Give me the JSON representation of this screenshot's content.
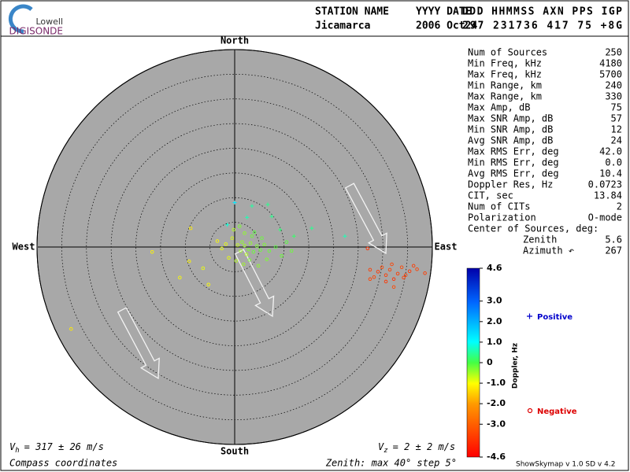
{
  "header": {
    "logo_top": "Lowell",
    "logo_bottom": "DIGISONDE",
    "columns": [
      "STATION NAME",
      "YYYY DATE",
      "DDD HHMMSS AXN PPS IGP"
    ],
    "values": [
      "Jicamarca",
      "2006 Oct24",
      "297 231736 417  75 +8G"
    ]
  },
  "stats": [
    {
      "label": "Num of Sources",
      "value": "250"
    },
    {
      "label": "Min Freq, kHz",
      "value": "4180"
    },
    {
      "label": "Max Freq, kHz",
      "value": "5700"
    },
    {
      "label": "Min Range, km",
      "value": "240"
    },
    {
      "label": "Max Range, km",
      "value": "330"
    },
    {
      "label": "Max Amp, dB",
      "value": "75"
    },
    {
      "label": "Max SNR Amp, dB",
      "value": "57"
    },
    {
      "label": "Min SNR Amp, dB",
      "value": "12"
    },
    {
      "label": "Avg SNR Amp, dB",
      "value": "24"
    },
    {
      "label": "Max RMS Err, deg",
      "value": "42.0"
    },
    {
      "label": "Min RMS Err, deg",
      "value": "0.0"
    },
    {
      "label": "Avg RMS Err, deg",
      "value": "10.4"
    },
    {
      "label": "Doppler Res, Hz",
      "value": "0.0723"
    },
    {
      "label": "CIT, sec",
      "value": "13.84"
    },
    {
      "label": "Num of CITs",
      "value": "2"
    },
    {
      "label": "Polarization",
      "value": "O-mode"
    },
    {
      "label": "Center of Sources, deg:",
      "items": [
        {
          "label": "Zenith",
          "value": "5.6"
        },
        {
          "label": "Azimuth ↶",
          "value": "267"
        }
      ]
    }
  ],
  "footer": {
    "vh": {
      "symbol": "V",
      "subscript": "h",
      "text": "= 317 ± 26 m/s"
    },
    "vz": {
      "symbol": "V",
      "subscript": "z",
      "text": "= 2 ± 2 m/s"
    },
    "coords": "Compass coordinates",
    "zenith": "Zenith: max 40°  step 5°",
    "version": "ShowSkymap v 1.0   SD v 4.2"
  },
  "chart_data": {
    "type": "skymap",
    "directions": {
      "north": "North",
      "south": "South",
      "east": "East",
      "west": "West"
    },
    "rlim": [
      0,
      40
    ],
    "rticks": [
      5,
      10,
      15,
      20,
      25,
      30,
      35,
      40
    ],
    "x": [
      27.4,
      28.2,
      29.0,
      29.8,
      30.6,
      31.4,
      32.2,
      33.0,
      33.8,
      34.6,
      35.4,
      36.2,
      36.9,
      38.5,
      32.2,
      30.6,
      27.4,
      26.9,
      34.2,
      31.8,
      -33.1,
      -16.7,
      -11.1,
      -9.2,
      -5.3,
      -8.9,
      -6.4,
      1.5,
      2.0,
      2.8,
      3.2,
      3.8,
      2.4,
      1.2,
      0.6,
      4.5,
      5.2,
      6.0,
      7.0,
      8.3,
      3.5,
      2.0,
      4.0,
      5.5,
      -0.5,
      -1.8,
      -2.6,
      -1.2,
      0.3,
      1.8,
      3.0,
      -3.5,
      -0.2,
      1.0,
      10.5,
      11.5,
      9.5,
      6.5,
      4.8,
      0.0,
      3.5,
      6.7,
      7.5,
      15.6,
      22.3,
      12.0,
      9.2,
      -1.5,
      2.5
    ],
    "y": [
      -4.6,
      -6.1,
      -5.0,
      -4.1,
      -5.7,
      -4.6,
      -6.5,
      -5.4,
      -4.1,
      -5.7,
      -4.9,
      -3.8,
      -4.5,
      -5.3,
      -8.1,
      -7.0,
      -6.5,
      -0.3,
      -6.2,
      -3.5,
      -16.6,
      -1.0,
      -6.2,
      -2.9,
      -7.6,
      3.8,
      -4.3,
      1.0,
      0.3,
      -0.5,
      0.8,
      -1.0,
      -1.5,
      -0.8,
      0.4,
      0.2,
      -0.6,
      0.5,
      -0.8,
      0.0,
      2.2,
      2.8,
      3.0,
      1.8,
      1.8,
      0.6,
      -0.3,
      -2.2,
      -2.8,
      -3.5,
      -2.6,
      1.2,
      3.5,
      4.2,
      1.0,
      -0.8,
      -1.8,
      -2.5,
      -3.8,
      9.0,
      8.3,
      8.6,
      6.2,
      3.8,
      2.2,
      2.2,
      3.5,
      4.5,
      6.0
    ],
    "doppler": [
      -3.6,
      -3.5,
      -3.7,
      -3.4,
      -3.6,
      -3.5,
      -3.8,
      -3.6,
      -3.4,
      -3.5,
      -3.7,
      -3.6,
      -3.5,
      -3.6,
      -3.4,
      -3.7,
      -3.5,
      -3.8,
      -3.6,
      -3.5,
      -1.2,
      -1.1,
      -1.0,
      -1.1,
      -1.0,
      -1.2,
      -0.9,
      -0.4,
      -0.5,
      -0.3,
      -0.4,
      -0.2,
      -0.6,
      -0.5,
      -0.7,
      -0.3,
      -0.2,
      -0.3,
      -0.2,
      -0.1,
      -0.2,
      -0.4,
      -0.1,
      -0.2,
      -0.8,
      -0.9,
      -0.9,
      -0.9,
      -0.6,
      -0.5,
      -0.3,
      -1.0,
      -0.6,
      -0.3,
      -0.1,
      -0.2,
      -0.2,
      -0.3,
      -0.4,
      1.3,
      0.5,
      0.4,
      0.4,
      0.4,
      0.6,
      0.2,
      0.3,
      0.8,
      0.6
    ],
    "colorbar": {
      "label": "Doppler, Hz",
      "lim": [
        -4.6,
        4.6
      ],
      "ticks": [
        -4.6,
        {
          "value": -3,
          "label": "-3.0"
        },
        {
          "value": -2,
          "label": "-2.0"
        },
        {
          "value": -1,
          "label": "-1.0"
        },
        0,
        {
          "value": 1,
          "label": "1.0"
        },
        {
          "value": 2,
          "label": "2.0"
        },
        {
          "value": 3,
          "label": "3.0"
        },
        4.6
      ]
    },
    "legend": {
      "positive": "Positive",
      "negative": "Negative"
    }
  }
}
